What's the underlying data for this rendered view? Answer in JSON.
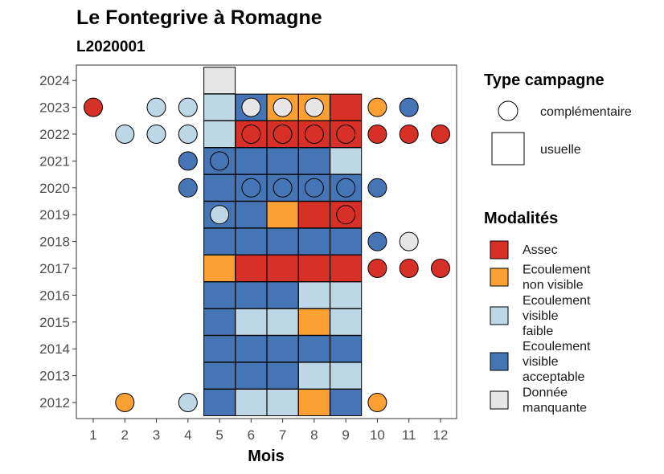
{
  "chart_data": {
    "type": "heatmap",
    "title": "Le Fontegrive à Romagne",
    "subtitle": "L2020001",
    "xlabel": "Mois",
    "ylabel": "",
    "x_ticks": [
      "1",
      "2",
      "3",
      "4",
      "5",
      "6",
      "7",
      "8",
      "9",
      "10",
      "11",
      "12"
    ],
    "y_ticks": [
      "2012",
      "2013",
      "2014",
      "2015",
      "2016",
      "2017",
      "2018",
      "2019",
      "2020",
      "2021",
      "2022",
      "2023",
      "2024"
    ],
    "grid": false,
    "legend_position": "right",
    "campaign_legend": {
      "title": "Type campagne",
      "items": [
        {
          "key": "complementaire",
          "label": "complémentaire",
          "shape": "circle"
        },
        {
          "key": "usuelle",
          "label": "usuelle",
          "shape": "square"
        }
      ]
    },
    "modalities_legend": {
      "title": "Modalités",
      "items": [
        {
          "key": "assec",
          "lines": [
            "Assec"
          ],
          "color": "#d73027"
        },
        {
          "key": "nonvisible",
          "lines": [
            "Ecoulement",
            "non visible"
          ],
          "color": "#fdA033"
        },
        {
          "key": "faible",
          "lines": [
            "Ecoulement",
            "visible",
            "faible"
          ],
          "color": "#bdd7e7"
        },
        {
          "key": "acceptable",
          "lines": [
            "Ecoulement",
            "visible",
            "acceptable"
          ],
          "color": "#4575b4"
        },
        {
          "key": "manquante",
          "lines": [
            "Donnée",
            "manquante"
          ],
          "color": "#e6e6e6"
        }
      ]
    },
    "usuelle": [
      {
        "year": 2012,
        "values": [
          "acceptable",
          "faible",
          "faible",
          "nonvisible",
          "acceptable"
        ]
      },
      {
        "year": 2013,
        "values": [
          "acceptable",
          "acceptable",
          "acceptable",
          "faible",
          "faible"
        ]
      },
      {
        "year": 2014,
        "values": [
          "acceptable",
          "acceptable",
          "acceptable",
          "acceptable",
          "acceptable"
        ]
      },
      {
        "year": 2015,
        "values": [
          "acceptable",
          "faible",
          "faible",
          "nonvisible",
          "faible"
        ]
      },
      {
        "year": 2016,
        "values": [
          "acceptable",
          "acceptable",
          "acceptable",
          "faible",
          "faible"
        ]
      },
      {
        "year": 2017,
        "values": [
          "nonvisible",
          "assec",
          "assec",
          "assec",
          "assec"
        ]
      },
      {
        "year": 2018,
        "values": [
          "acceptable",
          "acceptable",
          "acceptable",
          "acceptable",
          "acceptable"
        ]
      },
      {
        "year": 2019,
        "values": [
          "acceptable",
          "acceptable",
          "nonvisible",
          "assec",
          "assec"
        ]
      },
      {
        "year": 2020,
        "values": [
          "acceptable",
          "acceptable",
          "acceptable",
          "acceptable",
          "acceptable"
        ]
      },
      {
        "year": 2021,
        "values": [
          "acceptable",
          "acceptable",
          "acceptable",
          "acceptable",
          "faible"
        ]
      },
      {
        "year": 2022,
        "values": [
          "faible",
          "assec",
          "assec",
          "assec",
          "assec"
        ]
      },
      {
        "year": 2023,
        "values": [
          "faible",
          "acceptable",
          "nonvisible",
          "nonvisible",
          "assec"
        ]
      },
      {
        "year": 2024,
        "values": [
          "manquante",
          null,
          null,
          null,
          null
        ]
      }
    ],
    "usuelle_months": [
      5,
      6,
      7,
      8,
      9
    ],
    "complementaire": [
      {
        "year": 2012,
        "month": 2,
        "value": "nonvisible"
      },
      {
        "year": 2012,
        "month": 4,
        "value": "faible"
      },
      {
        "year": 2012,
        "month": 10,
        "value": "nonvisible"
      },
      {
        "year": 2017,
        "month": 10,
        "value": "assec"
      },
      {
        "year": 2017,
        "month": 11,
        "value": "assec"
      },
      {
        "year": 2017,
        "month": 12,
        "value": "assec"
      },
      {
        "year": 2018,
        "month": 10,
        "value": "acceptable"
      },
      {
        "year": 2018,
        "month": 11,
        "value": "manquante"
      },
      {
        "year": 2019,
        "month": 5,
        "value": "faible"
      },
      {
        "year": 2019,
        "month": 9,
        "value": "assec"
      },
      {
        "year": 2020,
        "month": 4,
        "value": "acceptable"
      },
      {
        "year": 2020,
        "month": 6,
        "value": "acceptable"
      },
      {
        "year": 2020,
        "month": 7,
        "value": "acceptable"
      },
      {
        "year": 2020,
        "month": 8,
        "value": "acceptable"
      },
      {
        "year": 2020,
        "month": 9,
        "value": "acceptable"
      },
      {
        "year": 2020,
        "month": 10,
        "value": "acceptable"
      },
      {
        "year": 2021,
        "month": 4,
        "value": "acceptable"
      },
      {
        "year": 2021,
        "month": 5,
        "value": "acceptable"
      },
      {
        "year": 2022,
        "month": 2,
        "value": "faible"
      },
      {
        "year": 2022,
        "month": 3,
        "value": "faible"
      },
      {
        "year": 2022,
        "month": 4,
        "value": "faible"
      },
      {
        "year": 2022,
        "month": 6,
        "value": "assec"
      },
      {
        "year": 2022,
        "month": 7,
        "value": "assec"
      },
      {
        "year": 2022,
        "month": 8,
        "value": "assec"
      },
      {
        "year": 2022,
        "month": 9,
        "value": "assec"
      },
      {
        "year": 2022,
        "month": 10,
        "value": "assec"
      },
      {
        "year": 2022,
        "month": 11,
        "value": "assec"
      },
      {
        "year": 2022,
        "month": 12,
        "value": "assec"
      },
      {
        "year": 2023,
        "month": 1,
        "value": "assec"
      },
      {
        "year": 2023,
        "month": 3,
        "value": "faible"
      },
      {
        "year": 2023,
        "month": 4,
        "value": "faible"
      },
      {
        "year": 2023,
        "month": 6,
        "value": "manquante"
      },
      {
        "year": 2023,
        "month": 7,
        "value": "manquante"
      },
      {
        "year": 2023,
        "month": 8,
        "value": "manquante"
      },
      {
        "year": 2023,
        "month": 10,
        "value": "nonvisible"
      },
      {
        "year": 2023,
        "month": 11,
        "value": "acceptable"
      }
    ]
  }
}
